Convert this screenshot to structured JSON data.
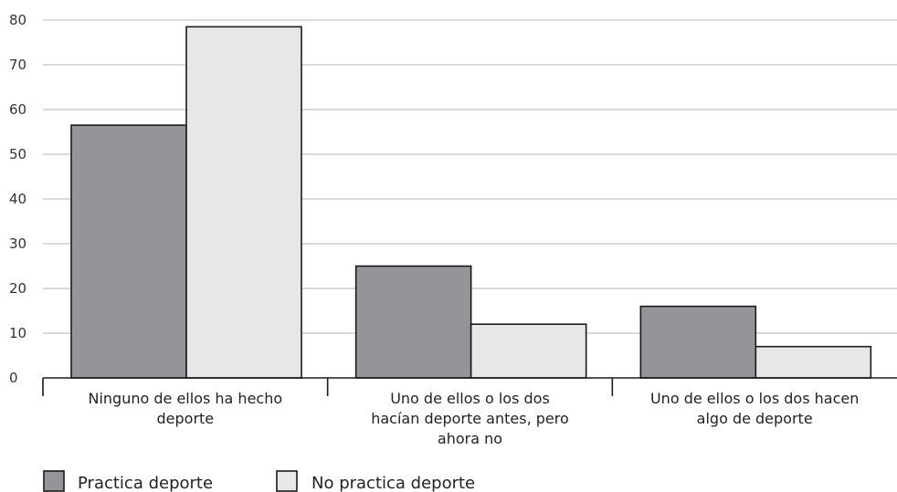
{
  "chart_data": {
    "type": "bar",
    "categories": [
      [
        "Ninguno de ellos ha hecho",
        "deporte"
      ],
      [
        "Uno de ellos o los dos",
        "hacían deporte antes, pero",
        "ahora no"
      ],
      [
        "Uno de ellos o los dos hacen",
        "algo de deporte"
      ]
    ],
    "series": [
      {
        "name": "Practica deporte",
        "values": [
          56.5,
          25,
          16
        ],
        "color": "#939598"
      },
      {
        "name": "No practica deporte",
        "values": [
          78.5,
          12,
          7
        ],
        "color": "#e6e7e8"
      }
    ],
    "title": "",
    "xlabel": "",
    "ylabel": "",
    "ylim": [
      0,
      80
    ],
    "yticks": [
      0,
      10,
      20,
      30,
      40,
      50,
      60,
      70,
      80
    ],
    "grid": true,
    "legend": "bottom-left"
  }
}
